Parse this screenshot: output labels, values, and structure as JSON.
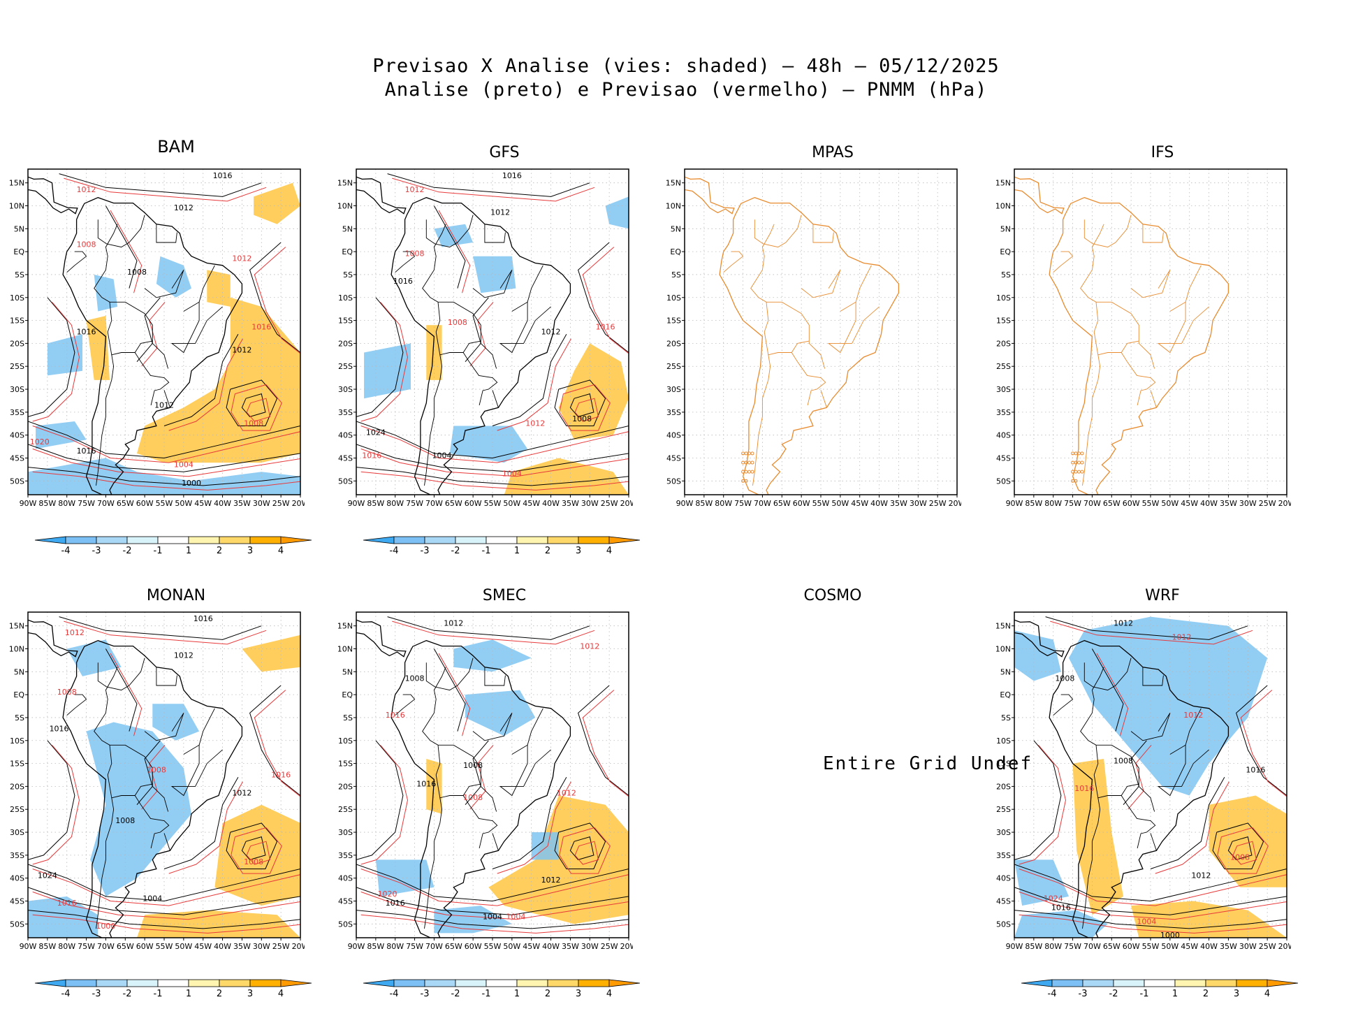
{
  "title": {
    "line1": "Previsao X Analise (vies: shaded) – 48h – 05/12/2025",
    "line2": "Analise (preto) e Previsao (vermelho) – PNMM (hPa)"
  },
  "lat_labels": [
    "15N",
    "10N",
    "5N",
    "EQ",
    "5S",
    "10S",
    "15S",
    "20S",
    "25S",
    "30S",
    "35S",
    "40S",
    "45S",
    "50S"
  ],
  "lon_labels": [
    "90W",
    "85W",
    "80W",
    "75W",
    "70W",
    "65W",
    "60W",
    "55W",
    "50W",
    "45W",
    "40W",
    "35W",
    "30W",
    "25W",
    "20W"
  ],
  "colorbar": {
    "labels": [
      "-4",
      "-3",
      "-2",
      "-1",
      "1",
      "2",
      "3",
      "4"
    ],
    "colors": [
      "#3ea8f0",
      "#7cc0f5",
      "#a9d8f7",
      "#d9f3fb",
      "#ffffff",
      "#fff5b0",
      "#ffd86a",
      "#ffb000",
      "#ff9b00"
    ]
  },
  "colors": {
    "analysis": "#000000",
    "forecast": "#e8393a",
    "coast_plain": "#e88b2e",
    "neg_bias": "#7fc4f2",
    "pos_bias": "#ffc640"
  },
  "panels": [
    {
      "name": "BAM",
      "status": "data"
    },
    {
      "name": "GFS",
      "status": "data"
    },
    {
      "name": "MPAS",
      "status": "coast_only"
    },
    {
      "name": "IFS",
      "status": "coast_only"
    },
    {
      "name": "MONAN",
      "status": "data"
    },
    {
      "name": "SMEC",
      "status": "data"
    },
    {
      "name": "COSMO",
      "status": "undef",
      "message": "Entire Grid Undef"
    },
    {
      "name": "WRF",
      "status": "data"
    }
  ],
  "isobar_labels": {
    "BAM": [
      "1016",
      "1012",
      "1012",
      "1008",
      "1008",
      "1012",
      "1016",
      "1016",
      "1012",
      "1008",
      "1012",
      "1020",
      "1016",
      "1004",
      "1000"
    ],
    "GFS": [
      "1016",
      "1012",
      "1012",
      "1008",
      "1016",
      "1008",
      "1012",
      "1016",
      "1008",
      "1012",
      "1024",
      "1016",
      "1004",
      "1004"
    ],
    "MONAN": [
      "1016",
      "1012",
      "1012",
      "1008",
      "1016",
      "1008",
      "1012",
      "1016",
      "1008",
      "1008",
      "1024",
      "1016",
      "1004",
      "1000"
    ],
    "SMEC": [
      "1012",
      "1012",
      "1008",
      "1016",
      "1008",
      "1012",
      "1016",
      "1008",
      "1012",
      "1020",
      "1016",
      "1004",
      "1004"
    ],
    "WRF": [
      "1012",
      "1012",
      "1008",
      "1016",
      "1008",
      "1012",
      "1016",
      "1008",
      "1012",
      "1024",
      "1016",
      "1004",
      "1000"
    ]
  }
}
